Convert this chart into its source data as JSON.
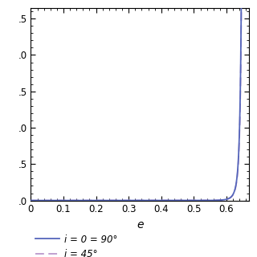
{
  "xlabel": "e",
  "xlim": [
    0.0,
    0.67
  ],
  "ylim": [
    0.0,
    2.65
  ],
  "xticks": [
    0.0,
    0.1,
    0.2,
    0.3,
    0.4,
    0.5,
    0.6
  ],
  "xtick_labels": [
    "0",
    "0.1",
    "0.2",
    "0.3",
    "0.4",
    "0.5",
    "0.6"
  ],
  "yticks": [
    0.0,
    0.5,
    1.0,
    1.5,
    2.0,
    2.5
  ],
  "ytick_labels": [
    ".0",
    ".5",
    ".0",
    ".5",
    ".0",
    ".5"
  ],
  "line1_color": "#5566bb",
  "line1_style": "solid",
  "line1_label": "i = 0 = 90°",
  "line2_color": "#bb99cc",
  "line2_style": "dashed",
  "line2_label": "i = 45°",
  "line_width": 1.3,
  "background_color": "#ffffff",
  "legend_fontsize": 8.5,
  "axis_fontsize": 10,
  "tick_fontsize": 8.5,
  "e_max": 0.655,
  "e_crit": 0.6627,
  "power_e": 10,
  "power_denom": 3.5
}
